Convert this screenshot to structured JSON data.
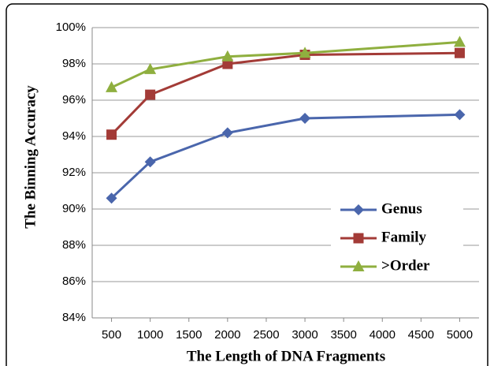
{
  "chart_data": {
    "type": "line",
    "xlabel": "The Length of DNA Fragments",
    "ylabel": "The Binning Accuracy",
    "x": [
      500,
      1000,
      2000,
      3000,
      5000
    ],
    "series": [
      {
        "name": "Genus",
        "color": "#4a66ac",
        "marker": "diamond",
        "values": [
          90.6,
          92.6,
          94.2,
          95.0,
          95.2
        ]
      },
      {
        "name": "Family",
        "color": "#a33b37",
        "marker": "square",
        "values": [
          94.1,
          96.3,
          98.0,
          98.5,
          98.6
        ]
      },
      {
        "name": ">Order",
        "color": "#8faf3f",
        "marker": "triangle",
        "values": [
          96.7,
          97.7,
          98.4,
          98.6,
          99.2
        ]
      }
    ],
    "xlim": [
      250,
      5250
    ],
    "xticks": [
      500,
      1000,
      1500,
      2000,
      2500,
      3000,
      3500,
      4000,
      4500,
      5000
    ],
    "ylim": [
      84,
      100
    ],
    "yticks": [
      {
        "value": 84,
        "label": "84%"
      },
      {
        "value": 86,
        "label": "86%"
      },
      {
        "value": 88,
        "label": "88%"
      },
      {
        "value": 90,
        "label": "90%"
      },
      {
        "value": 92,
        "label": "92%"
      },
      {
        "value": 94,
        "label": "94%"
      },
      {
        "value": 96,
        "label": "96%"
      },
      {
        "value": 98,
        "label": "98%"
      },
      {
        "value": 100,
        "label": "100%"
      }
    ],
    "grid": true,
    "legend": "lower right"
  }
}
